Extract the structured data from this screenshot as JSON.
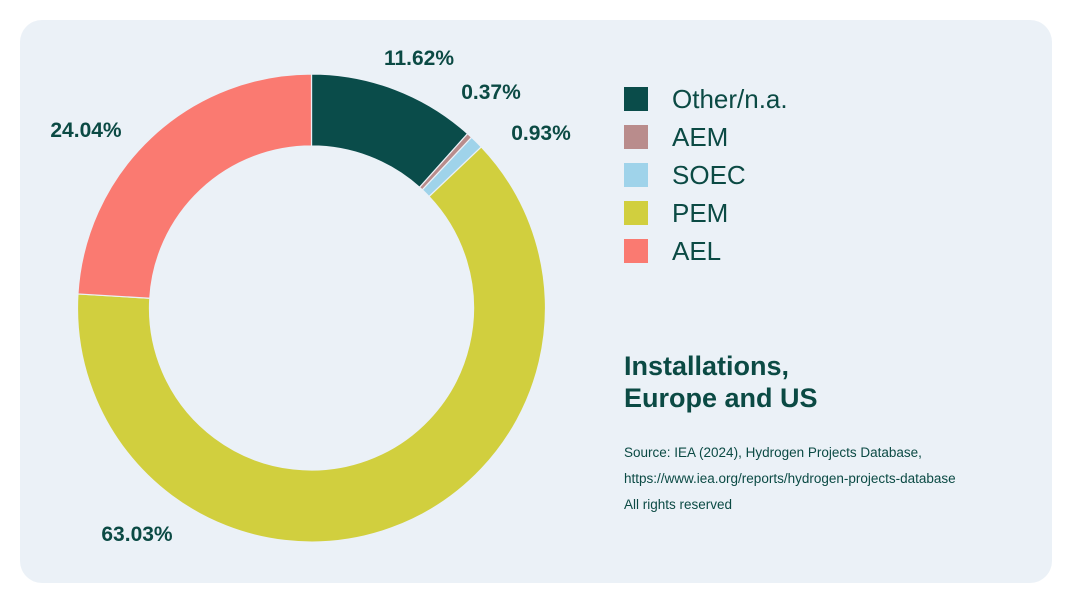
{
  "chart_data": {
    "type": "pie",
    "variant": "donut",
    "categories": [
      "Other/n.a.",
      "AEM",
      "SOEC",
      "PEM",
      "AEL"
    ],
    "values": [
      11.62,
      0.37,
      0.93,
      63.03,
      24.04
    ],
    "labels": [
      "11.62%",
      "0.37%",
      "0.93%",
      "63.03%",
      "24.04%"
    ],
    "colors": [
      "#0a4c4a",
      "#b98c8c",
      "#9fd3ea",
      "#d1cf3e",
      "#fa7a71"
    ],
    "start_angle": "12 o'clock",
    "direction": "clockwise",
    "legend_position": "right"
  },
  "title_lines": [
    "Installations,",
    "Europe and US"
  ],
  "source_lines": [
    "Source: IEA (2024), Hydrogen Projects Database,",
    "https://www.iea.org/reports/hydrogen-projects-database",
    "All rights reserved"
  ]
}
